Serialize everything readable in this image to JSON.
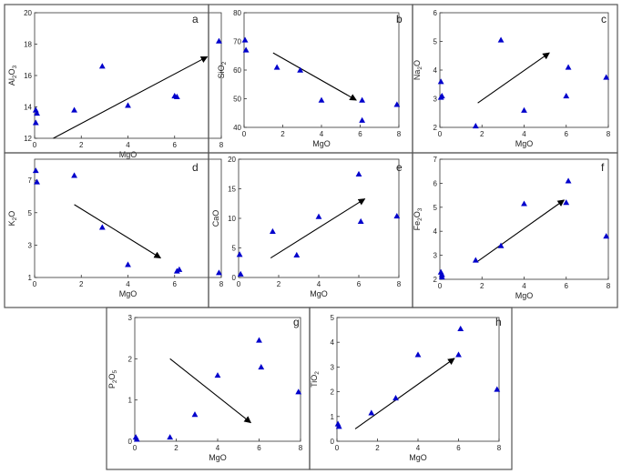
{
  "figure": {
    "marker_color": "#0000CC",
    "arrow_color": "#000000",
    "frame_color": "#555555"
  },
  "chart_data": [
    {
      "id": "a",
      "type": "scatter",
      "xlabel": "MgO",
      "ylabel_parts": [
        "Al",
        "2",
        "O",
        "3"
      ],
      "xlim": [
        0,
        8
      ],
      "ylim": [
        12,
        20
      ],
      "xticks": [
        0,
        2,
        4,
        6,
        8
      ],
      "yticks": [
        12,
        14,
        16,
        18,
        20
      ],
      "x": [
        0.05,
        0.1,
        0.05,
        1.7,
        2.9,
        4.0,
        6.0,
        6.1,
        7.9
      ],
      "y": [
        13.8,
        13.6,
        13.0,
        13.8,
        16.6,
        14.1,
        14.7,
        14.65,
        18.2
      ],
      "arrow": {
        "from": [
          0.8,
          12.0
        ],
        "to": [
          7.4,
          17.2
        ]
      }
    },
    {
      "id": "b",
      "type": "scatter",
      "xlabel": "MgO",
      "ylabel_parts": [
        "SiO",
        "2"
      ],
      "xlim": [
        0,
        8
      ],
      "ylim": [
        40,
        80
      ],
      "xticks": [
        0,
        2,
        4,
        6,
        8
      ],
      "yticks": [
        40,
        50,
        60,
        70,
        80
      ],
      "x": [
        0.05,
        0.1,
        1.7,
        2.9,
        4.0,
        6.1,
        6.1,
        7.9
      ],
      "y": [
        70.5,
        67,
        61,
        60,
        49.5,
        49.5,
        42.5,
        48
      ],
      "arrow": {
        "from": [
          1.5,
          66
        ],
        "to": [
          5.8,
          49.5
        ]
      }
    },
    {
      "id": "c",
      "type": "scatter",
      "xlabel": "MgO",
      "ylabel_parts": [
        "Na",
        "2",
        "O"
      ],
      "xlim": [
        0,
        8
      ],
      "ylim": [
        2,
        6
      ],
      "xticks": [
        0,
        2,
        4,
        6,
        8
      ],
      "yticks": [
        2,
        3,
        4,
        5,
        6
      ],
      "x": [
        0.05,
        0.1,
        0.05,
        1.7,
        2.9,
        4.0,
        6.0,
        6.1,
        7.9
      ],
      "y": [
        3.6,
        3.1,
        3.05,
        2.05,
        5.05,
        2.6,
        3.1,
        4.1,
        3.75
      ],
      "arrow": {
        "from": [
          1.8,
          2.85
        ],
        "to": [
          5.2,
          4.6
        ]
      }
    },
    {
      "id": "d",
      "type": "scatter",
      "xlabel": "MgO",
      "ylabel_parts": [
        "K",
        "2",
        "O"
      ],
      "xlim": [
        0,
        8
      ],
      "ylim": [
        1,
        8.3
      ],
      "xticks": [
        0,
        2,
        4,
        6,
        8
      ],
      "yticks": [
        1,
        3,
        5,
        7
      ],
      "x": [
        0.05,
        0.1,
        1.7,
        2.9,
        4.0,
        6.1,
        6.2,
        7.9
      ],
      "y": [
        7.6,
        6.9,
        7.3,
        4.1,
        1.8,
        1.4,
        1.5,
        1.3
      ],
      "arrow": {
        "from": [
          1.7,
          5.5
        ],
        "to": [
          5.4,
          2.2
        ]
      }
    },
    {
      "id": "e",
      "type": "scatter",
      "xlabel": "MgO",
      "ylabel_parts": [
        "CaO"
      ],
      "xlim": [
        0,
        8
      ],
      "ylim": [
        0,
        20
      ],
      "xticks": [
        0,
        2,
        4,
        6,
        8
      ],
      "yticks": [
        0,
        5,
        10,
        15,
        20
      ],
      "x": [
        0.05,
        0.1,
        1.7,
        2.9,
        4.0,
        6.0,
        6.1,
        7.9
      ],
      "y": [
        3.9,
        0.6,
        7.8,
        3.8,
        10.3,
        17.5,
        9.5,
        10.4
      ],
      "arrow": {
        "from": [
          1.6,
          3.3
        ],
        "to": [
          6.3,
          13.3
        ]
      }
    },
    {
      "id": "f",
      "type": "scatter",
      "xlabel": "MgO",
      "ylabel_parts": [
        "Fe",
        "2",
        "O",
        "3"
      ],
      "xlim": [
        0,
        8
      ],
      "ylim": [
        2,
        7
      ],
      "xticks": [
        0,
        2,
        4,
        6,
        8
      ],
      "yticks": [
        2,
        3,
        4,
        5,
        6,
        7
      ],
      "x": [
        0.05,
        0.1,
        0.1,
        1.7,
        2.9,
        4.0,
        6.0,
        6.1,
        7.9
      ],
      "y": [
        2.3,
        2.2,
        2.1,
        2.8,
        3.4,
        5.15,
        5.2,
        6.1,
        3.8
      ],
      "arrow": {
        "from": [
          1.8,
          2.75
        ],
        "to": [
          5.9,
          5.3
        ]
      }
    },
    {
      "id": "g",
      "type": "scatter",
      "xlabel": "MgO",
      "ylabel_parts": [
        "P",
        "2",
        "O",
        "5"
      ],
      "xlim": [
        0,
        8
      ],
      "ylim": [
        0,
        3
      ],
      "xticks": [
        0,
        2,
        4,
        6,
        8
      ],
      "yticks": [
        0,
        1,
        2,
        3
      ],
      "x": [
        0.05,
        0.1,
        1.7,
        2.9,
        4.0,
        6.0,
        6.1,
        7.9
      ],
      "y": [
        0.1,
        0.05,
        0.1,
        0.65,
        1.6,
        2.45,
        1.8,
        1.2
      ],
      "arrow": {
        "from": [
          1.7,
          2.0
        ],
        "to": [
          5.6,
          0.45
        ]
      }
    },
    {
      "id": "h",
      "type": "scatter",
      "xlabel": "MgO",
      "ylabel_parts": [
        "TiO",
        "2"
      ],
      "xlim": [
        0,
        8
      ],
      "ylim": [
        0,
        5
      ],
      "xticks": [
        0,
        2,
        4,
        6,
        8
      ],
      "yticks": [
        0,
        1,
        2,
        3,
        4,
        5
      ],
      "x": [
        0.05,
        0.1,
        1.7,
        2.9,
        4.0,
        6.0,
        6.1,
        7.9
      ],
      "y": [
        0.7,
        0.6,
        1.15,
        1.75,
        3.5,
        3.5,
        4.55,
        2.1
      ],
      "arrow": {
        "from": [
          0.9,
          0.5
        ],
        "to": [
          5.8,
          3.35
        ]
      }
    }
  ]
}
